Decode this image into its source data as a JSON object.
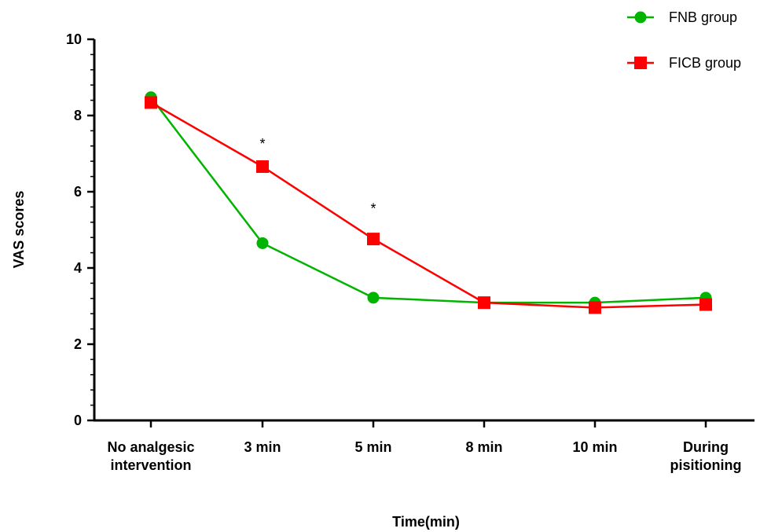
{
  "chart_data": {
    "type": "line",
    "categories": [
      [
        "No analgesic",
        "intervention"
      ],
      [
        "3 min"
      ],
      [
        "5 min"
      ],
      [
        "8 min"
      ],
      [
        "10 min"
      ],
      [
        "During",
        "pisitioning"
      ]
    ],
    "series": [
      {
        "name": "FNB group",
        "color": "#00b400",
        "marker": "circle",
        "values": [
          8.48,
          4.65,
          3.22,
          3.09,
          3.09,
          3.22
        ]
      },
      {
        "name": "FICB group",
        "color": "#ff0000",
        "marker": "square",
        "values": [
          8.34,
          6.66,
          4.76,
          3.09,
          2.96,
          3.04
        ]
      }
    ],
    "xlabel": "Time(min)",
    "ylabel": "VAS scores",
    "ylim": [
      0,
      10
    ],
    "yticks": [
      "0",
      "2",
      "4",
      "6",
      "8",
      "10"
    ],
    "annotations": [
      {
        "category_index": 1,
        "y": 7.3,
        "text": "*"
      },
      {
        "category_index": 2,
        "y": 5.6,
        "text": "*"
      }
    ],
    "legend_position": "top-right",
    "grid": false
  }
}
